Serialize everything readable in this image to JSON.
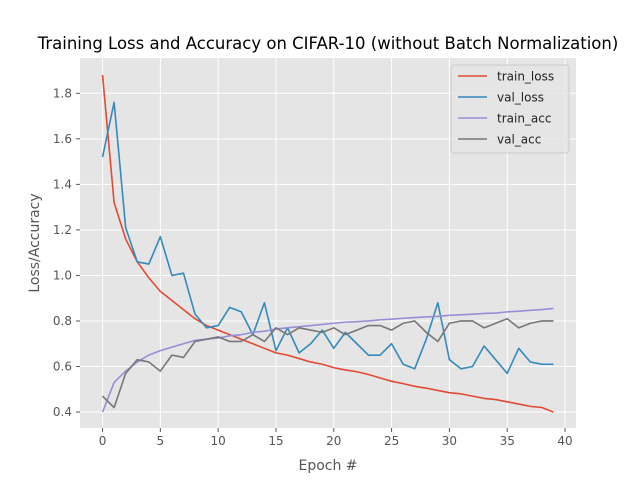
{
  "chart_data": {
    "type": "line",
    "title": "Training Loss and Accuracy on CIFAR-10 (without Batch Normalization)",
    "xlabel": "Epoch #",
    "ylabel": "Loss/Accuracy",
    "xlim": [
      -1.95,
      40.95
    ],
    "ylim": [
      0.33,
      1.955
    ],
    "xticks": [
      0,
      5,
      10,
      15,
      20,
      25,
      30,
      35,
      40
    ],
    "yticks": [
      0.4,
      0.6,
      0.8,
      1.0,
      1.2,
      1.4,
      1.6,
      1.8
    ],
    "grid": true,
    "style": "ggplot",
    "legend_position": "upper-right",
    "x": [
      0,
      1,
      2,
      3,
      4,
      5,
      6,
      7,
      8,
      9,
      10,
      11,
      12,
      13,
      14,
      15,
      16,
      17,
      18,
      19,
      20,
      21,
      22,
      23,
      24,
      25,
      26,
      27,
      28,
      29,
      30,
      31,
      32,
      33,
      34,
      35,
      36,
      37,
      38,
      39
    ],
    "series": [
      {
        "name": "train_loss",
        "color": "#E24A33",
        "values": [
          1.88,
          1.32,
          1.16,
          1.06,
          0.99,
          0.93,
          0.89,
          0.85,
          0.81,
          0.78,
          0.76,
          0.74,
          0.72,
          0.7,
          0.68,
          0.66,
          0.65,
          0.635,
          0.62,
          0.61,
          0.595,
          0.585,
          0.577,
          0.565,
          0.55,
          0.535,
          0.525,
          0.513,
          0.505,
          0.495,
          0.485,
          0.48,
          0.47,
          0.46,
          0.455,
          0.445,
          0.435,
          0.425,
          0.42,
          0.4
        ]
      },
      {
        "name": "val_loss",
        "color": "#348ABD",
        "values": [
          1.52,
          1.76,
          1.21,
          1.06,
          1.05,
          1.17,
          1.0,
          1.01,
          0.83,
          0.77,
          0.78,
          0.86,
          0.84,
          0.74,
          0.88,
          0.67,
          0.77,
          0.66,
          0.7,
          0.76,
          0.68,
          0.75,
          0.7,
          0.65,
          0.65,
          0.7,
          0.61,
          0.59,
          0.72,
          0.88,
          0.63,
          0.59,
          0.6,
          0.69,
          0.63,
          0.57,
          0.68,
          0.62,
          0.61,
          0.61
        ]
      },
      {
        "name": "train_acc",
        "color": "#988ED5",
        "values": [
          0.4,
          0.53,
          0.58,
          0.62,
          0.65,
          0.67,
          0.685,
          0.7,
          0.715,
          0.72,
          0.725,
          0.735,
          0.74,
          0.75,
          0.755,
          0.765,
          0.77,
          0.775,
          0.78,
          0.785,
          0.79,
          0.795,
          0.797,
          0.8,
          0.805,
          0.808,
          0.812,
          0.815,
          0.818,
          0.82,
          0.825,
          0.827,
          0.83,
          0.833,
          0.835,
          0.84,
          0.843,
          0.847,
          0.85,
          0.855
        ]
      },
      {
        "name": "val_acc",
        "color": "#777777",
        "values": [
          0.47,
          0.42,
          0.57,
          0.63,
          0.62,
          0.58,
          0.65,
          0.64,
          0.71,
          0.72,
          0.73,
          0.71,
          0.71,
          0.74,
          0.71,
          0.77,
          0.74,
          0.77,
          0.76,
          0.75,
          0.77,
          0.74,
          0.76,
          0.78,
          0.78,
          0.76,
          0.79,
          0.8,
          0.75,
          0.71,
          0.79,
          0.8,
          0.8,
          0.77,
          0.79,
          0.81,
          0.77,
          0.79,
          0.8,
          0.8
        ]
      }
    ]
  }
}
